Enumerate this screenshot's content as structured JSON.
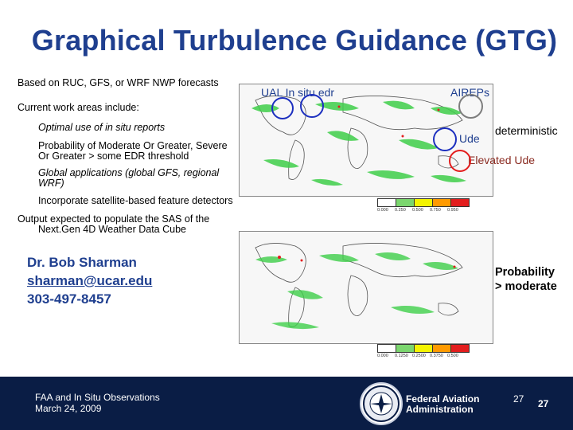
{
  "title": "Graphical Turbulence Guidance (GTG)",
  "bullets": {
    "based_on": "Based on RUC, GFS, or WRF NWP forecasts",
    "current_work": "Current work areas include:",
    "optimal_use": "Optimal use of in situ reports",
    "probability_line1": "Probability of Moderate Or Greater, Severe",
    "probability_line2": "Or Greater > some EDR threshold",
    "global_line1": "Global applications (global GFS, regional",
    "global_line2": "WRF)",
    "satellite": "Incorporate satellite-based feature detectors",
    "output_line1": "Output expected to populate the SAS of the",
    "output_line2": "Next.Gen 4D Weather Data Cube"
  },
  "contact": {
    "name": "Dr. Bob Sharman",
    "email": "sharman@ucar.edu",
    "phone": "303-497-8457"
  },
  "annotations": {
    "ual": "UAL In situ edr",
    "aireps": "AIREPs",
    "deterministic": "deterministic",
    "ude": "Ude",
    "elevated_ude": "Elevated Ude",
    "probability_line1": "Probability",
    "probability_line2": "> moderate"
  },
  "legend_top": [
    "0.000",
    "0.250",
    "0.500",
    "0.750",
    "0.950"
  ],
  "legend_bottom": [
    "0.000",
    "0.1250",
    "0.2500",
    "0.3750",
    "0.500"
  ],
  "colors": {
    "title": "#1f3f8f",
    "footer_bg": "#0a1d45",
    "legend": [
      "#ffffff",
      "#7bd66e",
      "#f4f400",
      "#ff9a00",
      "#e31e1e"
    ],
    "circle_blue": "#1c2fbf",
    "circle_green": "#7d7d7d",
    "circle_red": "#e31e1e",
    "elevated_text": "#8a2a20"
  },
  "footer": {
    "left_line1": "FAA and In Situ Observations",
    "left_line2": "March 24, 2009",
    "faa_line1": "Federal Aviation",
    "faa_line2": "Administration",
    "page_a": "27",
    "page_b": "27",
    "seal_icon": "faa-seal-icon"
  }
}
